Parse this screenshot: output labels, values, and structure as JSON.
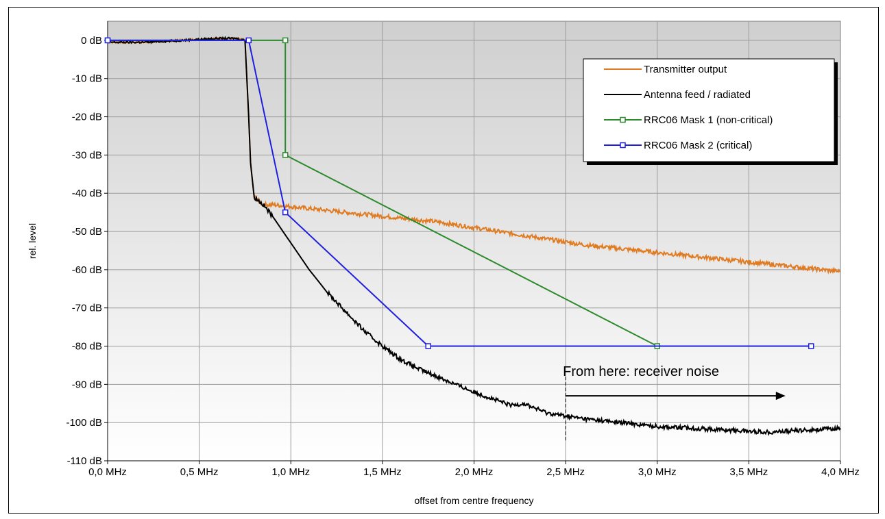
{
  "chart_data": {
    "type": "line",
    "xlabel": "offset from centre frequency",
    "ylabel": "rel. level",
    "xlim": [
      0.0,
      4.0
    ],
    "ylim": [
      -110,
      5
    ],
    "x_ticks": [
      0.0,
      0.5,
      1.0,
      1.5,
      2.0,
      2.5,
      3.0,
      3.5,
      4.0
    ],
    "x_tick_labels": [
      "0,0 MHz",
      "0,5 MHz",
      "1,0 MHz",
      "1,5 MHz",
      "2,0 MHz",
      "2,5 MHz",
      "3,0 MHz",
      "3,5 MHz",
      "4,0 MHz"
    ],
    "y_ticks": [
      0,
      -10,
      -20,
      -30,
      -40,
      -50,
      -60,
      -70,
      -80,
      -90,
      -100,
      -110
    ],
    "y_tick_labels": [
      "0 dB",
      "-10 dB",
      "-20 dB",
      "-30 dB",
      "-40 dB",
      "-50 dB",
      "-60 dB",
      "-70 dB",
      "-80 dB",
      "-90 dB",
      "-100 dB",
      "-110 dB"
    ],
    "grid": true,
    "legend_position": "top-right",
    "series": [
      {
        "name": "Transmitter output",
        "color": "#e07b22",
        "marker": "none",
        "x": [
          0.0,
          0.2,
          0.4,
          0.6,
          0.7,
          0.75,
          0.77,
          0.78,
          0.8,
          0.85,
          0.9,
          1.0,
          1.2,
          1.4,
          1.6,
          1.8,
          2.0,
          2.2,
          2.4,
          2.6,
          2.8,
          3.0,
          3.2,
          3.4,
          3.6,
          3.8,
          4.0
        ],
        "y": [
          -0.5,
          -0.5,
          0,
          0.5,
          0.5,
          0,
          -20,
          -32,
          -41,
          -43,
          -43,
          -43.5,
          -44.5,
          -45.5,
          -46.5,
          -47.5,
          -49,
          -50.5,
          -52,
          -53.5,
          -54.5,
          -55.5,
          -56.5,
          -57.5,
          -58.5,
          -59.5,
          -60.5
        ]
      },
      {
        "name": "Antenna feed / radiated",
        "color": "#000000",
        "marker": "none",
        "x": [
          0.0,
          0.2,
          0.4,
          0.6,
          0.7,
          0.75,
          0.77,
          0.78,
          0.8,
          0.85,
          0.9,
          1.0,
          1.1,
          1.2,
          1.3,
          1.4,
          1.5,
          1.6,
          1.7,
          1.8,
          2.0,
          2.2,
          2.27,
          2.4,
          2.6,
          2.8,
          3.0,
          3.2,
          3.4,
          3.6,
          3.8,
          4.0
        ],
        "y": [
          -0.5,
          -0.5,
          0,
          0.5,
          0.5,
          0,
          -20,
          -32,
          -41,
          -43,
          -46,
          -53,
          -60,
          -66,
          -71,
          -76,
          -80,
          -83.5,
          -86,
          -88,
          -92,
          -95.5,
          -95,
          -97.5,
          -99,
          -100,
          -101,
          -101.5,
          -102,
          -102.5,
          -102,
          -101.5
        ]
      },
      {
        "name": "RRC06 Mask 1 (non-critical)",
        "color": "#2b8a2b",
        "marker": "square",
        "x": [
          0.0,
          0.97,
          0.97,
          3.0
        ],
        "y": [
          0,
          0,
          -30,
          -80
        ]
      },
      {
        "name": "RRC06 Mask 2 (critical)",
        "color": "#1f1fe0",
        "marker": "square",
        "x": [
          0.0,
          0.77,
          0.97,
          1.75,
          3.84
        ],
        "y": [
          0,
          0,
          -45,
          -80,
          -80
        ]
      }
    ],
    "annotations": [
      {
        "text": "From here: receiver noise",
        "x": 2.5,
        "y": -86.5,
        "arrow_from_x": 2.5,
        "arrow_to_x": 3.7,
        "arrow_y": -93,
        "vline_x": 2.5,
        "vline_y_top": -88,
        "vline_y_bottom": -105
      }
    ]
  }
}
